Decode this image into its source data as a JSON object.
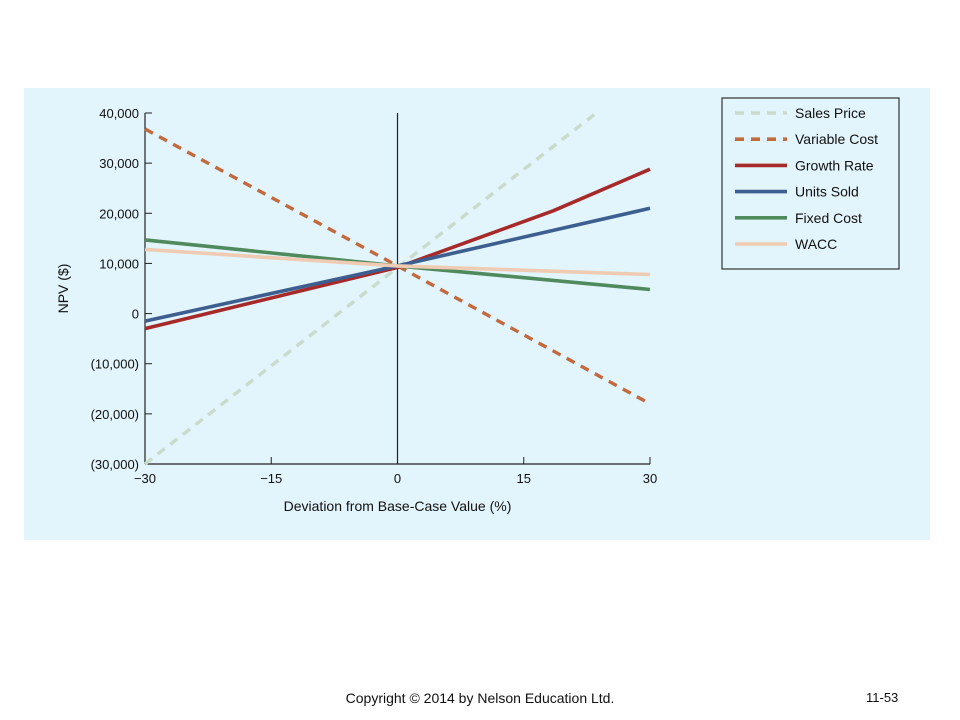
{
  "chart_data": {
    "type": "line",
    "title": "",
    "xlabel": "Deviation from Base-Case Value (%)",
    "ylabel": "NPV ($)",
    "xlim": [
      -30,
      30
    ],
    "ylim": [
      -30000,
      40000
    ],
    "x_ticks": [
      -30,
      -15,
      0,
      15,
      30
    ],
    "x_tick_labels": [
      "−30",
      "−15",
      "0",
      "15",
      "30"
    ],
    "y_ticks": [
      40000,
      30000,
      20000,
      10000,
      0,
      -10000,
      -20000,
      -30000
    ],
    "y_tick_labels": [
      "40,000",
      "30,000",
      "20,000",
      "10,000",
      "0",
      "(10,000)",
      "(20,000)",
      "(30,000)"
    ],
    "grid": false,
    "legend_position": "top-right",
    "series": [
      {
        "name": "Sales Price",
        "color": "#c9dccb",
        "dashed": true,
        "x": [
          -30,
          24
        ],
        "y": [
          -30000,
          40500
        ]
      },
      {
        "name": "Variable Cost",
        "color": "#c26a3e",
        "dashed": true,
        "x": [
          -30,
          0,
          30
        ],
        "y": [
          36800,
          9500,
          -18000
        ]
      },
      {
        "name": "Growth Rate",
        "color": "#a72a2a",
        "dashed": false,
        "x": [
          -30,
          0,
          18.5,
          30
        ],
        "y": [
          -3000,
          9200,
          20500,
          28800
        ]
      },
      {
        "name": "Units Sold",
        "color": "#3d5f8f",
        "dashed": false,
        "x": [
          -30,
          0,
          30
        ],
        "y": [
          -1500,
          9500,
          21000
        ]
      },
      {
        "name": "Fixed Cost",
        "color": "#4f8a5c",
        "dashed": false,
        "x": [
          -30,
          0,
          30
        ],
        "y": [
          14700,
          9500,
          4800
        ]
      },
      {
        "name": "WACC",
        "color": "#f0cbb3",
        "dashed": false,
        "x": [
          -30,
          0,
          30
        ],
        "y": [
          12800,
          9500,
          7800
        ]
      }
    ]
  },
  "footer": {
    "copyright": "Copyright © 2014 by Nelson Education Ltd.",
    "page_number": "11-53"
  }
}
